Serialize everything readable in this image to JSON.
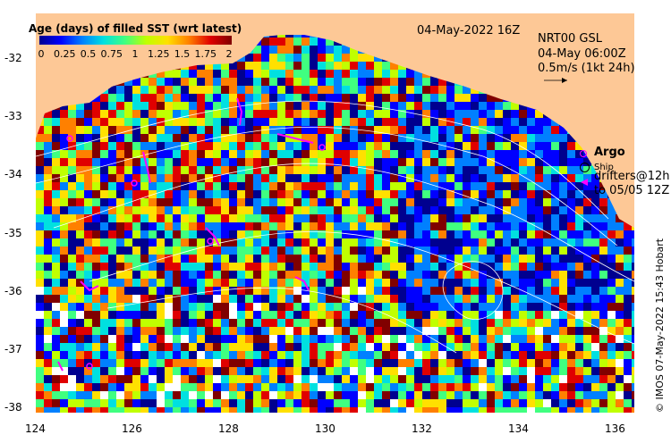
{
  "map_title": "04-May-2022 16Z",
  "product": {
    "line1": "NRT00 GSL",
    "line2": "04-May 06:00Z",
    "line3": "0.5m/s (1kt 24h)"
  },
  "legend": {
    "argo_label": "Argo",
    "ship_label": "Ship",
    "drifters_line1": "drifters@12h",
    "drifters_line2": "to 05/05 12Z",
    "argo_color": "#ff00ff",
    "drifter_color": "#ff00ff"
  },
  "colorbar": {
    "title": "Age (days) of filled SST (wrt latest)",
    "ticks": [
      "0",
      "0.25",
      "0.5",
      "0.75",
      "1",
      "1.25",
      "1.5",
      "1.75",
      "2"
    ],
    "colors": [
      "#00008f",
      "#0000ff",
      "#0080ff",
      "#00e0e0",
      "#40ff80",
      "#c0ff00",
      "#ffe000",
      "#ff8000",
      "#e00000",
      "#800000"
    ]
  },
  "axes": {
    "lat_ticks": [
      "-32",
      "-33",
      "-34",
      "-35",
      "-36",
      "-37",
      "-38"
    ],
    "lon_ticks": [
      "124",
      "126",
      "128",
      "130",
      "132",
      "134",
      "136"
    ]
  },
  "credit": "© IMOS 07-May-2022 15:43 Hobart",
  "colors": {
    "land": "#fdc896",
    "contour": "#ffffff"
  }
}
